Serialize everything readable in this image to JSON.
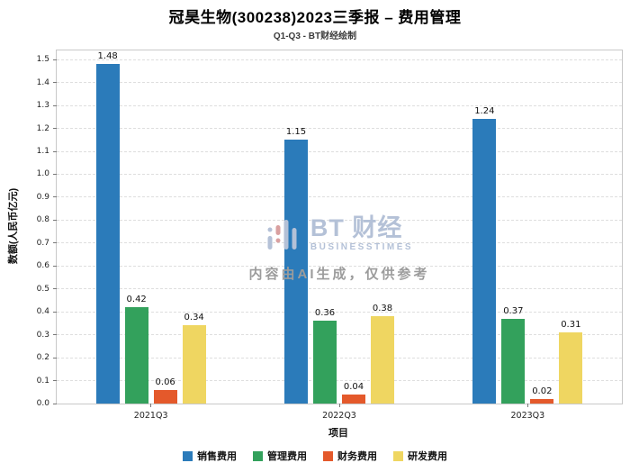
{
  "header": {
    "title": "冠昊生物(300238)2023三季报 – 费用管理",
    "subtitle": "Q1-Q3 - BT财经绘制"
  },
  "chart_data": {
    "type": "bar",
    "title": "冠昊生物(300238)2023三季报 – 费用管理",
    "subtitle": "Q1-Q3 - BT财经绘制",
    "categories": [
      "2021Q3",
      "2022Q3",
      "2023Q3"
    ],
    "series": [
      {
        "name": "销售费用",
        "color": "#2B7BBA",
        "values": [
          1.48,
          1.15,
          1.24
        ]
      },
      {
        "name": "管理费用",
        "color": "#33A15C",
        "values": [
          0.42,
          0.36,
          0.37
        ]
      },
      {
        "name": "财务费用",
        "color": "#E4592B",
        "values": [
          0.06,
          0.04,
          0.02
        ]
      },
      {
        "name": "研发费用",
        "color": "#EFD661",
        "values": [
          0.34,
          0.38,
          0.31
        ]
      }
    ],
    "xlabel": "项目",
    "ylabel": "数额(人民币亿元)",
    "ylim": [
      0,
      1.54
    ],
    "ytick_step": 0.1,
    "grid": "dashed-horizontal",
    "legend_position": "bottom"
  },
  "watermark": {
    "brand": "BT 财经",
    "brand_sub": "BUSINESSTIMES",
    "notice": "内容由AI生成，仅供参考"
  }
}
